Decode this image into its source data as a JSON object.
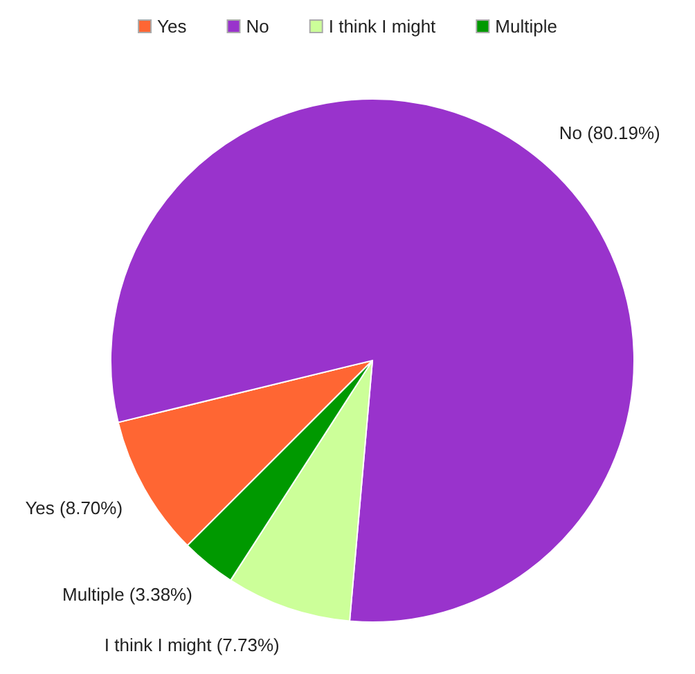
{
  "chart_data": {
    "type": "pie",
    "categories": [
      "Yes",
      "No",
      "I think I might",
      "Multiple"
    ],
    "values": [
      8.7,
      80.19,
      7.73,
      3.38
    ],
    "colors": [
      "#ff6633",
      "#9933cc",
      "#ccff99",
      "#009900"
    ],
    "value_labels": [
      "Yes (8.70%)",
      "No (80.19%)",
      "I think I might (7.73%)",
      "Multiple (3.38%)"
    ],
    "legend": "top"
  }
}
